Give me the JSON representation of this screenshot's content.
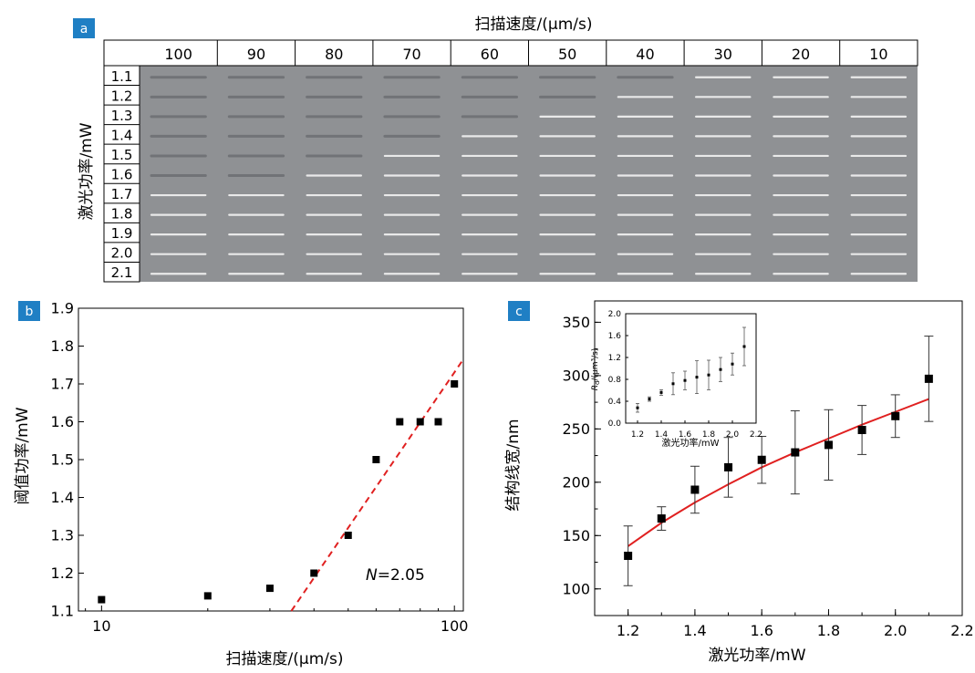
{
  "panels": {
    "a": {
      "badge": "a",
      "top_label": "扫描速度/(μm/s)",
      "side_label": "激光功率/mW",
      "column_headers": [
        "100",
        "90",
        "80",
        "70",
        "60",
        "50",
        "40",
        "30",
        "20",
        "10"
      ],
      "row_headers": [
        "1.1",
        "1.2",
        "1.3",
        "1.4",
        "1.5",
        "1.6",
        "1.7",
        "1.8",
        "1.9",
        "2.0",
        "2.1"
      ]
    },
    "b": {
      "badge": "b"
    },
    "c": {
      "badge": "c"
    }
  },
  "chart_data": [
    {
      "panel": "b",
      "type": "scatter",
      "xlabel": "扫描速度/(μm/s)",
      "ylabel": "阈值功率/mW",
      "xscale": "log",
      "xlim": [
        8.6,
        106
      ],
      "ylim": [
        1.1,
        1.9
      ],
      "x_ticks": [
        10,
        100
      ],
      "x_tick_labels": [
        "10",
        "100"
      ],
      "y_ticks": [
        1.1,
        1.2,
        1.3,
        1.4,
        1.5,
        1.6,
        1.7,
        1.8,
        1.9
      ],
      "y_tick_labels": [
        "1.1",
        "1.2",
        "1.3",
        "1.4",
        "1.5",
        "1.6",
        "1.7",
        "1.8",
        "1.9"
      ],
      "points": {
        "x": [
          10,
          20,
          30,
          40,
          50,
          60,
          70,
          80,
          90,
          100
        ],
        "y": [
          1.13,
          1.14,
          1.16,
          1.2,
          1.3,
          1.5,
          1.6,
          1.6,
          1.6,
          1.7
        ]
      },
      "fit_line": {
        "x": [
          34.5,
          106
        ],
        "y": [
          1.1,
          1.765
        ],
        "color": "#e02020",
        "style": "dashed"
      },
      "annotation": {
        "prefix": "N",
        "text": "=2.05"
      },
      "marker_color": "#000000"
    },
    {
      "panel": "c",
      "type": "scatter",
      "xlabel": "激光功率/mW",
      "ylabel": "结构线宽/nm",
      "xlim": [
        1.1,
        2.2
      ],
      "ylim": [
        75,
        370
      ],
      "x_ticks": [
        1.2,
        1.4,
        1.6,
        1.8,
        2.0,
        2.2
      ],
      "x_tick_labels": [
        "1.2",
        "1.4",
        "1.6",
        "1.8",
        "2.0",
        "2.2"
      ],
      "y_ticks": [
        100,
        150,
        200,
        250,
        300,
        350
      ],
      "y_tick_labels": [
        "100",
        "150",
        "200",
        "250",
        "300",
        "350"
      ],
      "points": {
        "x": [
          1.2,
          1.3,
          1.4,
          1.5,
          1.6,
          1.7,
          1.8,
          1.9,
          2.0,
          2.1
        ],
        "y": [
          131,
          166,
          193,
          214,
          221,
          228,
          235,
          249,
          262,
          297
        ],
        "err": [
          28,
          11,
          22,
          28,
          22,
          39,
          33,
          23,
          20,
          40
        ]
      },
      "fit_curve": {
        "x": [
          1.2,
          1.3,
          1.4,
          1.5,
          1.6,
          1.7,
          1.8,
          1.9,
          2.0,
          2.1
        ],
        "y": [
          140,
          162,
          181,
          198,
          214,
          228,
          241,
          254,
          266,
          278
        ],
        "color": "#e02020"
      },
      "marker_color": "#000000"
    },
    {
      "panel": "c-inset",
      "type": "scatter",
      "xlabel": "激光功率/mW",
      "ylabel_main": "R",
      "ylabel_sub": "d",
      "ylabel_rest": "/(μm³/s)",
      "xlim": [
        1.1,
        2.2
      ],
      "ylim": [
        0.0,
        2.0
      ],
      "x_ticks": [
        1.2,
        1.4,
        1.6,
        1.8,
        2.0,
        2.2
      ],
      "x_tick_labels": [
        "1.2",
        "1.4",
        "1.6",
        "1.8",
        "2.0",
        "2.2"
      ],
      "y_ticks": [
        0.0,
        0.4,
        0.8,
        1.2,
        1.6,
        2.0
      ],
      "y_tick_labels": [
        "0.0",
        "0.4",
        "0.8",
        "1.2",
        "1.6",
        "2.0"
      ],
      "points": {
        "x": [
          1.2,
          1.3,
          1.4,
          1.5,
          1.6,
          1.7,
          1.8,
          1.9,
          2.0,
          2.1
        ],
        "y": [
          0.28,
          0.44,
          0.56,
          0.72,
          0.78,
          0.84,
          0.88,
          0.98,
          1.08,
          1.4
        ],
        "err": [
          0.08,
          0.04,
          0.05,
          0.2,
          0.17,
          0.3,
          0.27,
          0.22,
          0.2,
          0.35
        ]
      },
      "marker_color": "#000000"
    }
  ],
  "colors": {
    "badge": "#1f7fc4",
    "micrograph_bg": "#8f9194",
    "line_bright": "#eeeeee",
    "line_dark": "#6a6c70",
    "fit": "#e02020"
  }
}
